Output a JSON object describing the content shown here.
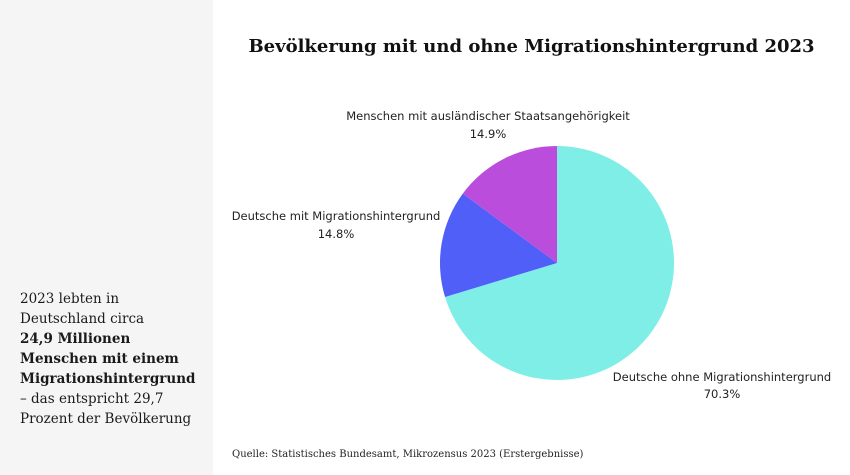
{
  "sidebar": {
    "lines": [
      {
        "text": "2023 lebten in",
        "bold": false
      },
      {
        "text": "Deutschland circa",
        "bold": false
      },
      {
        "text": "24,9 Millionen",
        "bold": true
      },
      {
        "text": "Menschen mit einem",
        "bold": true
      },
      {
        "text": "Migrationshintergrund",
        "bold": true
      },
      {
        "text": "– das entspricht 29,7",
        "bold": false
      },
      {
        "text": "Prozent der Bevölkerung",
        "bold": false
      }
    ]
  },
  "source": "Quelle: Statistisches Bundesamt, Mikrozensus 2023 (Erstergebnisse)",
  "chart_data": {
    "type": "pie",
    "title": "Bevölkerung mit und ohne Migrationshintergrund 2023",
    "start_angle_deg": 0,
    "direction": "clockwise",
    "slices": [
      {
        "label": "Deutsche ohne Migrationshintergrund",
        "value": 70.3,
        "value_label": "70.3%",
        "color": "#7eeee6"
      },
      {
        "label": "Deutsche mit Migrationshintergrund",
        "value": 14.8,
        "value_label": "14.8%",
        "color": "#4f5ff7"
      },
      {
        "label": "Menschen mit ausländischer Staatsangehörigkeit",
        "value": 14.9,
        "value_label": "14.9%",
        "color": "#bb4ddc"
      }
    ]
  }
}
